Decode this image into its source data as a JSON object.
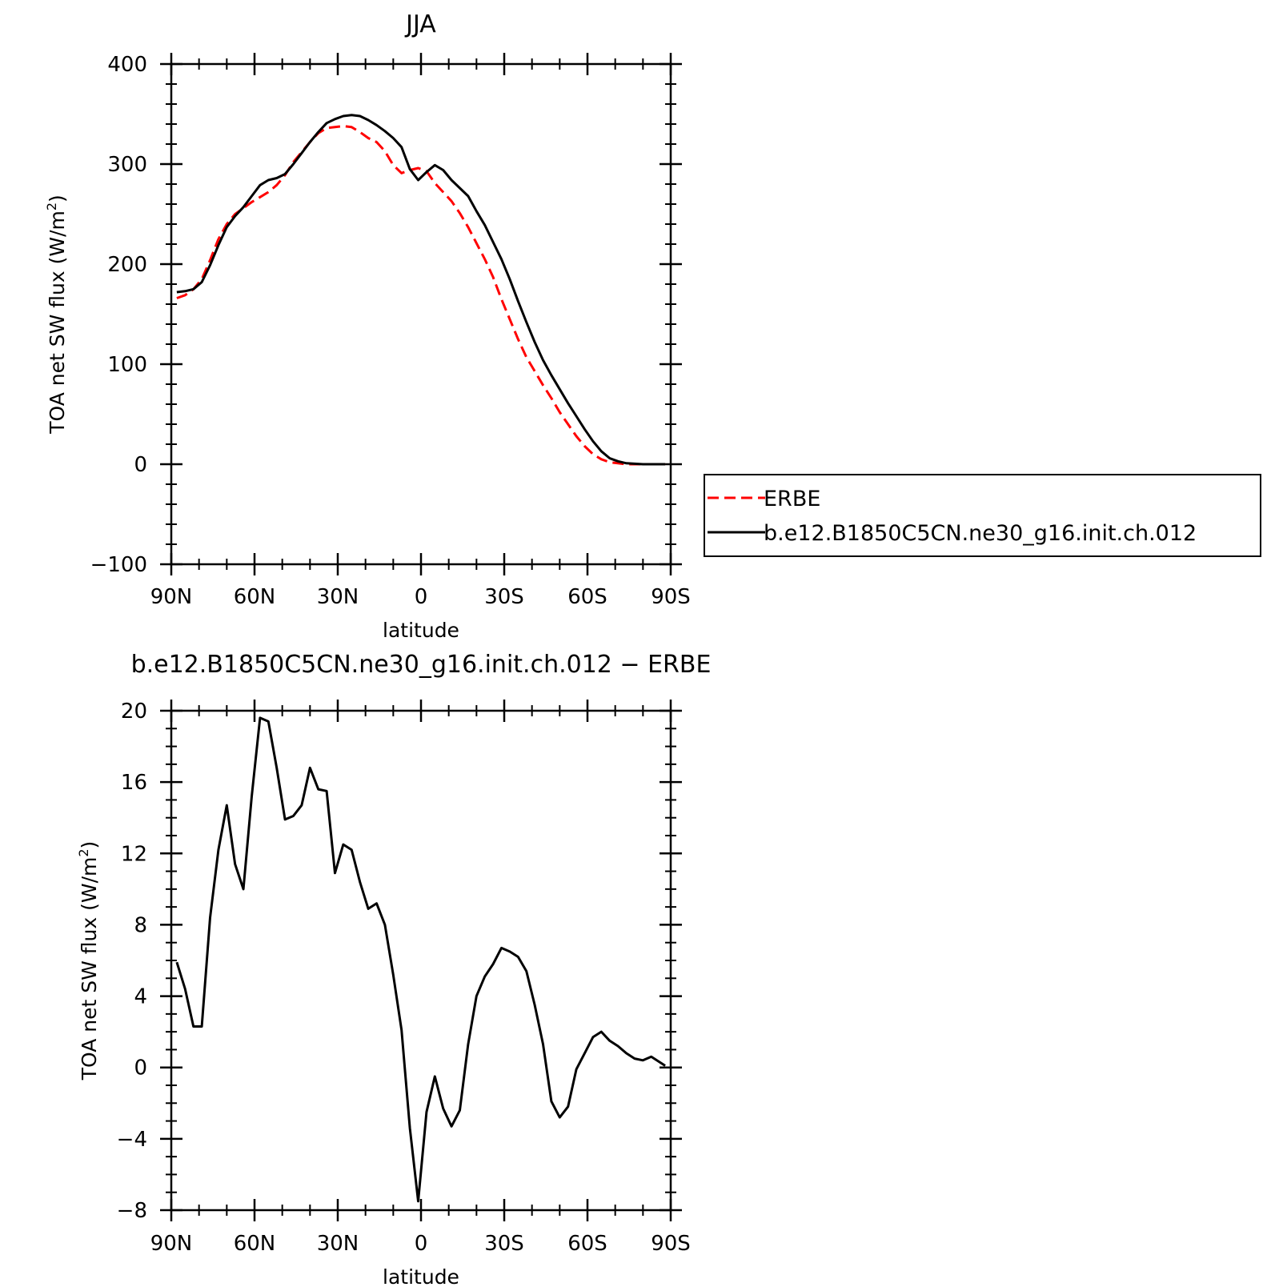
{
  "chart_data": [
    {
      "type": "line",
      "title": "JJA",
      "xlabel": "latitude",
      "ylabel": "TOA net SW flux (W/m",
      "ylabel_sup": "2",
      "ylabel_end": ")",
      "ylim": [
        -100,
        400
      ],
      "yticks": [
        {
          "value": -100,
          "label": "−100"
        },
        {
          "value": 0,
          "label": "0"
        },
        {
          "value": 100,
          "label": "100"
        },
        {
          "value": 200,
          "label": "200"
        },
        {
          "value": 300,
          "label": "300"
        },
        {
          "value": 400,
          "label": "400"
        }
      ],
      "xlim": [
        -90,
        90
      ],
      "xticks": [
        {
          "value": -90,
          "label": "90N"
        },
        {
          "value": -60,
          "label": "60N"
        },
        {
          "value": -30,
          "label": "30N"
        },
        {
          "value": 0,
          "label": "0"
        },
        {
          "value": 30,
          "label": "30S"
        },
        {
          "value": 60,
          "label": "60S"
        },
        {
          "value": 90,
          "label": "90S"
        }
      ],
      "legend": "right",
      "series": [
        {
          "name": "ERBE",
          "color": "#ff0000",
          "dash": "dashed",
          "x": [
            -88,
            -85,
            -82,
            -79,
            -76,
            -73,
            -70,
            -67,
            -64,
            -61,
            -58,
            -55,
            -52,
            -49,
            -46,
            -43,
            -40,
            -37,
            -34,
            -31,
            -28,
            -25,
            -22,
            -19,
            -16,
            -13,
            -10,
            -7,
            -4,
            -1,
            2,
            5,
            8,
            11,
            14,
            17,
            20,
            23,
            26,
            29,
            32,
            35,
            38,
            41,
            44,
            47,
            50,
            53,
            56,
            59,
            62,
            65,
            68,
            71,
            74,
            77,
            80,
            83,
            86,
            88
          ],
          "y": [
            166,
            169,
            175,
            185,
            204,
            225,
            240,
            250,
            256,
            262,
            267,
            272,
            279,
            289,
            302,
            312,
            322,
            331,
            336,
            337,
            338,
            337,
            332,
            326,
            322,
            313,
            299,
            291,
            294,
            296,
            293,
            281,
            272,
            263,
            251,
            237,
            221,
            205,
            187,
            165,
            145,
            125,
            107,
            93,
            79,
            66,
            52,
            40,
            28,
            18,
            10,
            5,
            2,
            1,
            0,
            0,
            0,
            0,
            0,
            0
          ]
        },
        {
          "name": "b.e12.B1850C5CN.ne30_g16.init.ch.012",
          "color": "#000000",
          "dash": "solid",
          "x": [
            -88,
            -85,
            -82,
            -79,
            -76,
            -73,
            -70,
            -67,
            -64,
            -61,
            -58,
            -55,
            -52,
            -49,
            -46,
            -43,
            -40,
            -37,
            -34,
            -31,
            -28,
            -25,
            -22,
            -19,
            -16,
            -13,
            -10,
            -7,
            -4,
            -1,
            2,
            5,
            8,
            11,
            14,
            17,
            20,
            23,
            26,
            29,
            32,
            35,
            38,
            41,
            44,
            47,
            50,
            53,
            56,
            59,
            62,
            65,
            68,
            71,
            74,
            77,
            80,
            83,
            86,
            88
          ],
          "y": [
            172,
            173,
            175,
            182,
            199,
            219,
            237,
            248,
            257,
            268,
            279,
            284,
            286,
            290,
            300,
            311,
            322,
            332,
            341,
            345,
            348,
            349,
            348,
            344,
            339,
            333,
            326,
            317,
            295,
            284,
            292,
            299,
            294,
            284,
            276,
            268,
            253,
            239,
            222,
            205,
            185,
            163,
            142,
            122,
            104,
            89,
            75,
            61,
            48,
            35,
            23,
            13,
            6,
            3,
            1,
            0.5,
            0,
            0,
            0,
            0
          ]
        }
      ]
    },
    {
      "type": "line",
      "title": "b.e12.B1850C5CN.ne30_g16.init.ch.012 − ERBE",
      "xlabel": "latitude",
      "ylabel": "TOA net SW flux (W/m",
      "ylabel_sup": "2",
      "ylabel_end": ")",
      "ylim": [
        -8,
        20
      ],
      "yticks": [
        {
          "value": -8,
          "label": "−8"
        },
        {
          "value": -4,
          "label": "−4"
        },
        {
          "value": 0,
          "label": "0"
        },
        {
          "value": 4,
          "label": "4"
        },
        {
          "value": 8,
          "label": "8"
        },
        {
          "value": 12,
          "label": "12"
        },
        {
          "value": 16,
          "label": "16"
        },
        {
          "value": 20,
          "label": "20"
        }
      ],
      "xlim": [
        -90,
        90
      ],
      "xticks": [
        {
          "value": -90,
          "label": "90N"
        },
        {
          "value": -60,
          "label": "60N"
        },
        {
          "value": -30,
          "label": "30N"
        },
        {
          "value": 0,
          "label": "0"
        },
        {
          "value": 30,
          "label": "30S"
        },
        {
          "value": 60,
          "label": "60S"
        },
        {
          "value": 90,
          "label": "90S"
        }
      ],
      "series": [
        {
          "color": "#000000",
          "dash": "solid",
          "x": [
            -88,
            -85,
            -82,
            -79,
            -76,
            -73,
            -70,
            -67,
            -64,
            -61,
            -58,
            -55,
            -52,
            -49,
            -46,
            -43,
            -40,
            -37,
            -34,
            -31,
            -28,
            -25,
            -22,
            -19,
            -16,
            -13,
            -10,
            -7,
            -4,
            -1,
            2,
            5,
            8,
            11,
            14,
            17,
            20,
            23,
            26,
            29,
            32,
            35,
            38,
            41,
            44,
            47,
            50,
            53,
            56,
            59,
            62,
            65,
            68,
            71,
            74,
            77,
            80,
            83,
            86,
            88
          ],
          "y": [
            5.9,
            4.4,
            2.3,
            2.3,
            8.4,
            12.2,
            14.7,
            11.4,
            10.0,
            15.2,
            19.6,
            19.4,
            16.8,
            13.9,
            14.1,
            14.7,
            16.8,
            15.6,
            15.5,
            10.9,
            12.5,
            12.2,
            10.4,
            8.9,
            9.2,
            8.0,
            5.2,
            2.1,
            -3.4,
            -7.5,
            -2.5,
            -0.5,
            -2.3,
            -3.3,
            -2.4,
            1.3,
            4.0,
            5.1,
            5.8,
            6.7,
            6.5,
            6.2,
            5.4,
            3.5,
            1.3,
            -1.9,
            -2.8,
            -2.2,
            -0.1,
            0.8,
            1.7,
            2.0,
            1.5,
            1.2,
            0.8,
            0.5,
            0.4,
            0.6,
            0.3,
            0.1
          ]
        }
      ]
    }
  ]
}
